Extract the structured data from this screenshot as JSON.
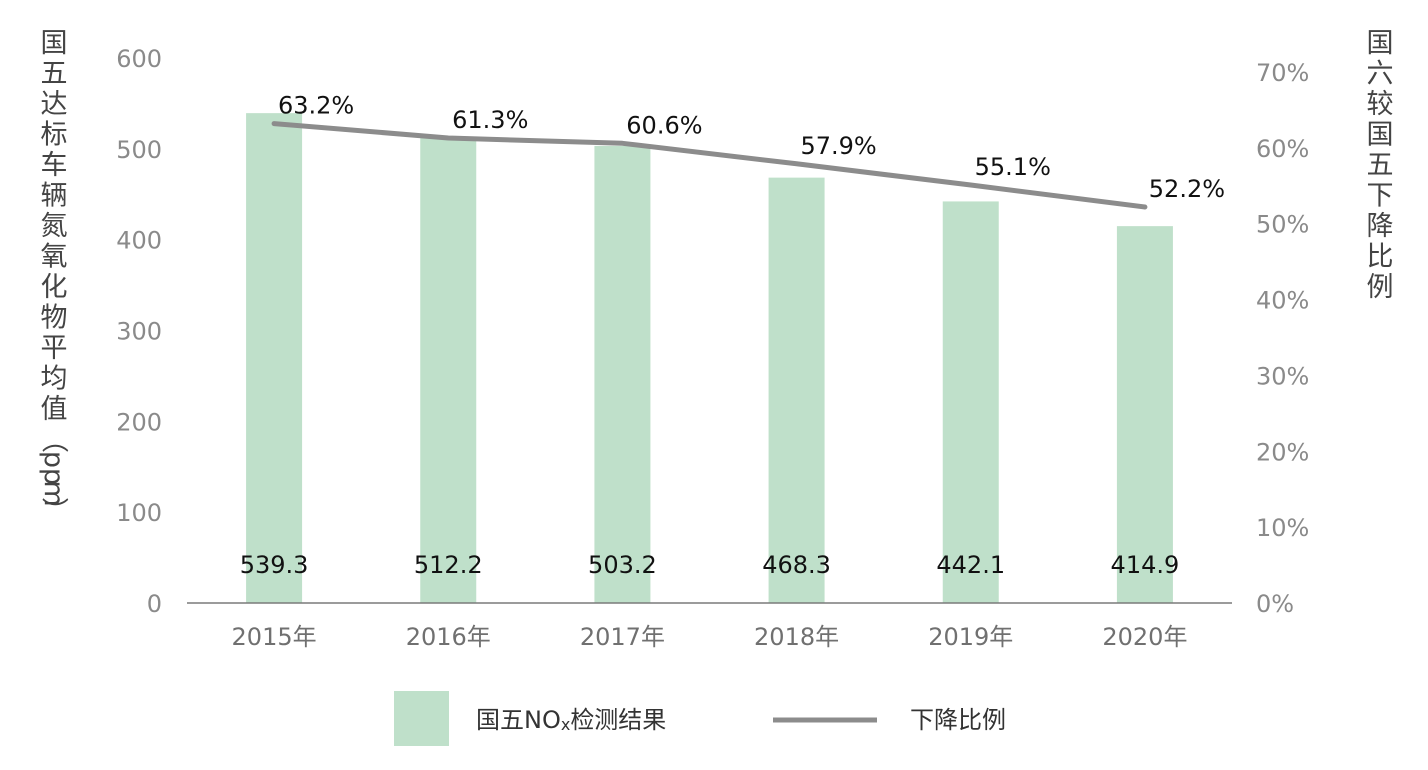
{
  "chart_data": {
    "type": "bar",
    "categories": [
      "2015年",
      "2016年",
      "2017年",
      "2018年",
      "2019年",
      "2020年"
    ],
    "series": [
      {
        "name": "国五NOx检测结果",
        "type": "bar",
        "axis": "left",
        "values": [
          539.3,
          512.2,
          503.2,
          468.3,
          442.1,
          414.9
        ],
        "labels": [
          "539.3",
          "512.2",
          "503.2",
          "468.3",
          "442.1",
          "414.9"
        ],
        "color": "#bfe0ca"
      },
      {
        "name": "下降比例",
        "type": "line",
        "axis": "right",
        "values": [
          63.2,
          61.3,
          60.6,
          57.9,
          55.1,
          52.2
        ],
        "labels": [
          "63.2%",
          "61.3%",
          "60.6%",
          "57.9%",
          "55.1%",
          "52.2%"
        ],
        "color": "#8c8c8c"
      }
    ],
    "y_left": {
      "label": "国五达标车辆氮氧化物平均值（ppm）",
      "ylim": [
        0,
        600
      ],
      "ticks": [
        "0",
        "100",
        "200",
        "300",
        "400",
        "500",
        "600"
      ]
    },
    "y_right": {
      "label": "国六较国五下降比例",
      "ylim": [
        0,
        70
      ],
      "ticks": [
        "0%",
        "10%",
        "20%",
        "30%",
        "40%",
        "50%",
        "60%",
        "70%"
      ]
    },
    "legend": {
      "placement": "bottom",
      "bar_label_main": "国五NO",
      "bar_label_sub": "x",
      "bar_label_rest": "检测结果",
      "line_label": "下降比例"
    },
    "grid": false
  }
}
